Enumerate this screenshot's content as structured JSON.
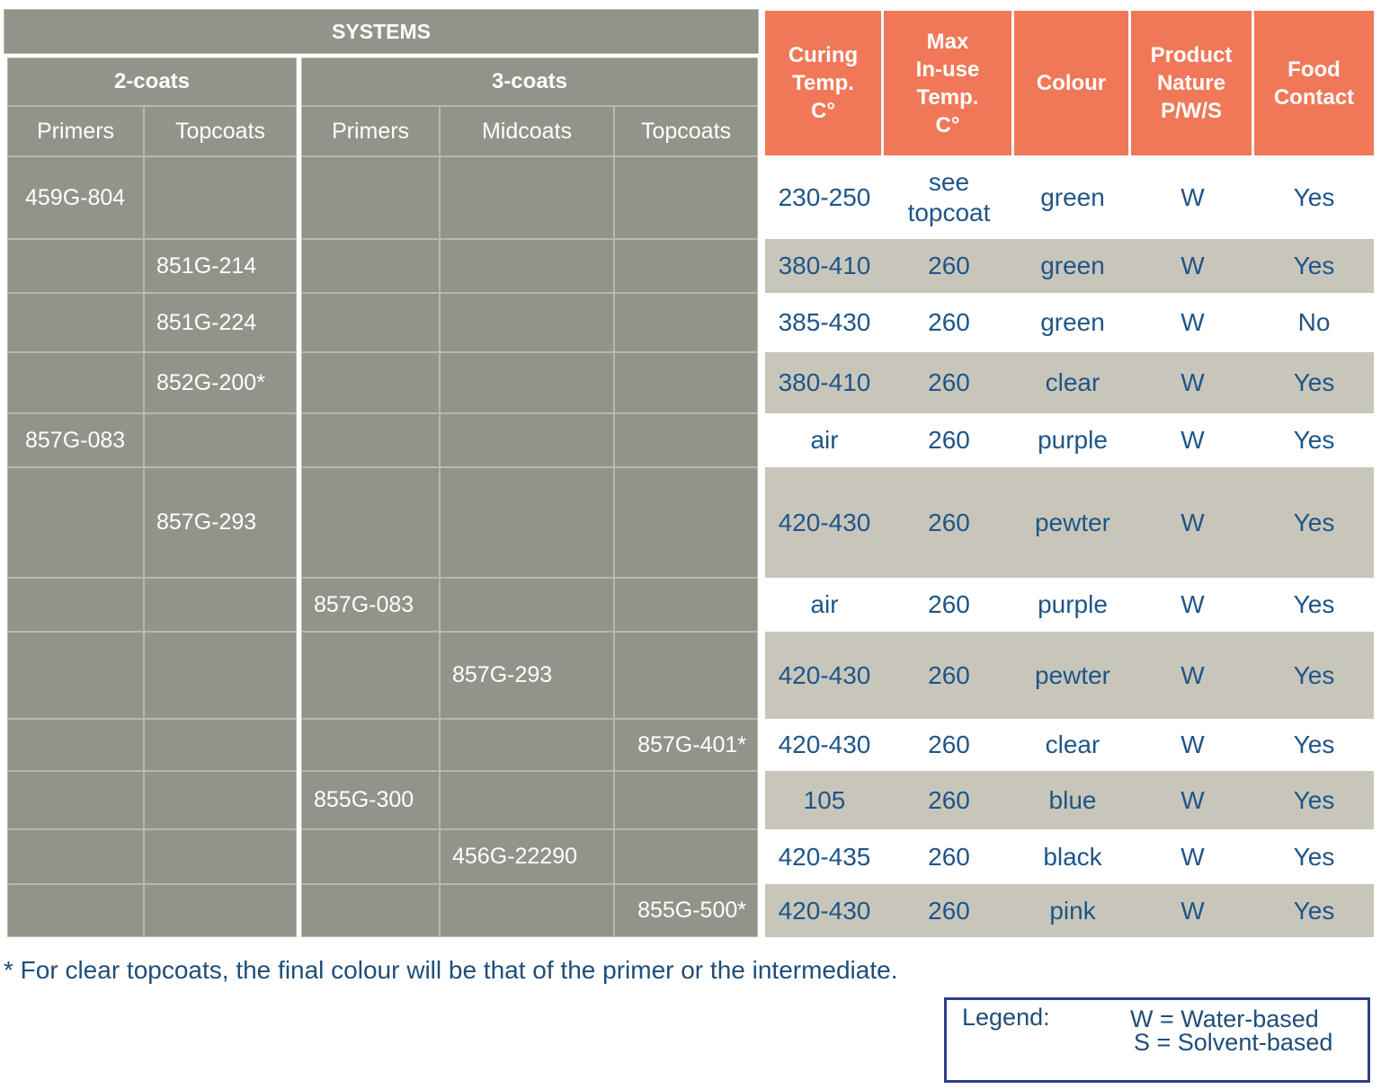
{
  "systems": {
    "title": "SYSTEMS",
    "groups": [
      {
        "label": "2-coats",
        "columns": [
          "Primers",
          "Topcoats"
        ]
      },
      {
        "label": "3-coats",
        "columns": [
          "Primers",
          "Midcoats",
          "Topcoats"
        ]
      }
    ]
  },
  "properties_header": [
    "Curing\nTemp.\nC°",
    "Max\nIn-use\nTemp.\nC°",
    "Colour",
    "Product\nNature\nP/W/S",
    "Food\nContact"
  ],
  "table": {
    "rows": [
      {
        "systems": [
          "459G-804",
          null,
          null,
          null,
          null
        ],
        "properties": [
          "230-250",
          "see\ntopcoat",
          "green",
          "W",
          "Yes"
        ]
      },
      {
        "systems": [
          null,
          "851G-214",
          null,
          null,
          null
        ],
        "properties": [
          "380-410",
          260,
          "green",
          "W",
          "Yes"
        ]
      },
      {
        "systems": [
          null,
          "851G-224",
          null,
          null,
          null
        ],
        "properties": [
          "385-430",
          260,
          "green",
          "W",
          "No"
        ]
      },
      {
        "systems": [
          null,
          "852G-200*",
          null,
          null,
          null
        ],
        "properties": [
          "380-410",
          260,
          "clear",
          "W",
          "Yes"
        ]
      },
      {
        "systems": [
          "857G-083",
          null,
          null,
          null,
          null
        ],
        "properties": [
          "air",
          260,
          "purple",
          "W",
          "Yes"
        ]
      },
      {
        "systems": [
          null,
          "857G-293",
          null,
          null,
          null
        ],
        "properties": [
          "420-430",
          260,
          "pewter",
          "W",
          "Yes"
        ]
      },
      {
        "systems": [
          null,
          null,
          "857G-083",
          null,
          null
        ],
        "properties": [
          "air",
          260,
          "purple",
          "W",
          "Yes"
        ]
      },
      {
        "systems": [
          null,
          null,
          null,
          "857G-293",
          null
        ],
        "properties": [
          "420-430",
          260,
          "pewter",
          "W",
          "Yes"
        ]
      },
      {
        "systems": [
          null,
          null,
          null,
          null,
          "857G-401*"
        ],
        "properties": [
          "420-430",
          260,
          "clear",
          "W",
          "Yes"
        ]
      },
      {
        "systems": [
          null,
          null,
          "855G-300",
          null,
          null
        ],
        "properties": [
          105,
          260,
          "blue",
          "W",
          "Yes"
        ]
      },
      {
        "systems": [
          null,
          null,
          null,
          "456G-22290",
          null
        ],
        "properties": [
          "420-435",
          260,
          "black",
          "W",
          "Yes"
        ]
      },
      {
        "systems": [
          null,
          null,
          null,
          null,
          "855G-500*"
        ],
        "properties": [
          "420-430",
          260,
          "pink",
          "W",
          "Yes"
        ]
      }
    ]
  },
  "footnote": "* For clear topcoats, the final colour will be that of the primer or the intermediate.",
  "legend": {
    "title": "Legend:",
    "entries": [
      "W = Water-based",
      "S = Solvent-based"
    ]
  }
}
